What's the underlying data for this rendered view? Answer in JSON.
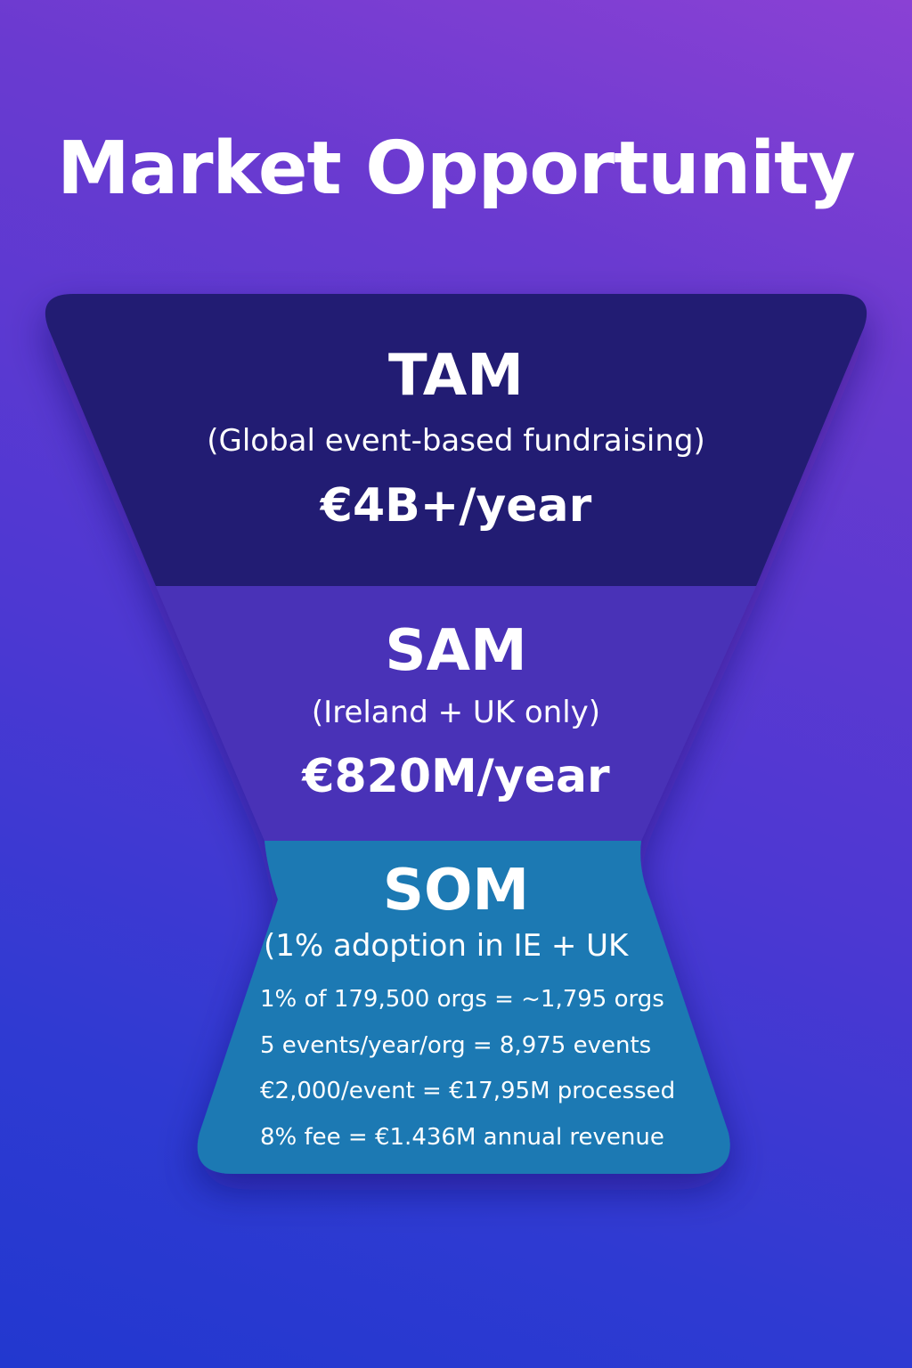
{
  "title": "Market Opportunity",
  "colors": {
    "tam_fill": "#231d73",
    "sam_fill": "#4a33b7",
    "som_fill": "#1a79b3",
    "text": "#ffffff"
  },
  "tam": {
    "name": "TAM",
    "description": "(Global event-based fundraising)",
    "value": "€4B+/year"
  },
  "sam": {
    "name": "SAM",
    "description": "(Ireland + UK only)",
    "value": "€820M/year"
  },
  "som": {
    "name": "SOM",
    "description": "(1% adoption in IE + UK",
    "lines": [
      "1% of 179,500 orgs = ~1,795 orgs",
      "5 events/year/org = 8,975 events",
      "€2,000/event = €17,95M processed",
      "8% fee = €1.436M annual revenue"
    ]
  }
}
